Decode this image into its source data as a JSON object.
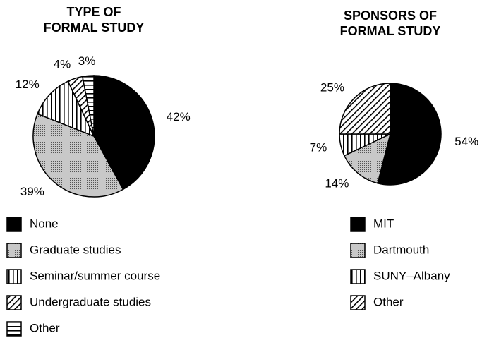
{
  "chart_data": [
    {
      "type": "pie",
      "title": [
        "TYPE OF",
        "FORMAL STUDY"
      ],
      "categories": [
        "None",
        "Graduate studies",
        "Seminar/summer course",
        "Undergraduate studies",
        "Other"
      ],
      "values": [
        42,
        39,
        12,
        4,
        3
      ],
      "value_labels": [
        "42%",
        "39%",
        "12%",
        "4%",
        "3%"
      ],
      "fills": [
        "solid",
        "dots",
        "vertical",
        "diagonal",
        "horizontal"
      ]
    },
    {
      "type": "pie",
      "title": [
        "SPONSORS OF",
        "FORMAL STUDY"
      ],
      "categories": [
        "MIT",
        "Dartmouth",
        "SUNY–Albany",
        "Other"
      ],
      "values": [
        54,
        14,
        7,
        25
      ],
      "value_labels": [
        "54%",
        "14%",
        "7%",
        "25%"
      ],
      "fills": [
        "solid",
        "dots",
        "vertical",
        "diagonal"
      ]
    }
  ]
}
